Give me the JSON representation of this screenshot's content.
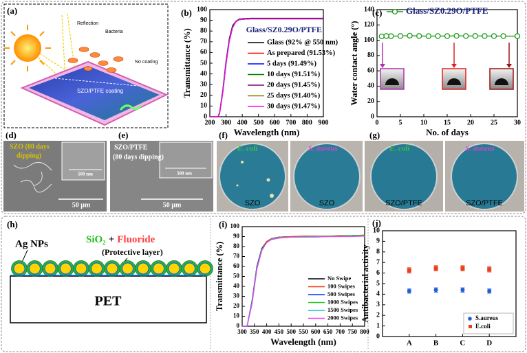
{
  "chart_data": [
    {
      "type": "line",
      "label": "(b)",
      "title": "Glass/SZ0.29O/PTFE",
      "xlabel": "Wavelength (nm)",
      "ylabel": "Transmittance (%)",
      "x": [
        200,
        250,
        260,
        280,
        300,
        320,
        340,
        360,
        380,
        400,
        450,
        550,
        700,
        900
      ],
      "series": [
        {
          "name": "Glass (92% @ 550 nm)",
          "color": "#000000",
          "values": [
            0,
            0,
            4,
            25,
            52,
            73,
            85,
            89,
            91,
            91.5,
            92,
            92,
            92,
            92
          ]
        },
        {
          "name": "As prepared (91.53%)",
          "color": "#ff0000",
          "values": [
            0,
            0,
            3,
            24,
            50,
            72,
            84,
            89,
            90.5,
            91,
            91.5,
            91.5,
            91.5,
            91.5
          ]
        },
        {
          "name": "5 days  (91.49%)",
          "color": "#0000ff",
          "values": [
            0,
            0,
            3,
            24,
            51,
            72,
            84,
            89,
            90.5,
            91,
            91.5,
            91.5,
            91.5,
            91.5
          ]
        },
        {
          "name": "10 days (91.51%)",
          "color": "#008000",
          "values": [
            0,
            0,
            3,
            23,
            50,
            71,
            84,
            89,
            90.5,
            91,
            91.5,
            91.5,
            91.5,
            91.5
          ]
        },
        {
          "name": "20 days (91.45%)",
          "color": "#800080",
          "values": [
            0,
            0,
            3,
            23,
            50,
            71,
            83,
            88.5,
            90.5,
            91,
            91.4,
            91.4,
            91.4,
            91.4
          ]
        },
        {
          "name": "25 days (91.40%)",
          "color": "#808000",
          "values": [
            0,
            0,
            3,
            23,
            49,
            71,
            83,
            88.5,
            90.5,
            91,
            91.4,
            91.4,
            91.4,
            91.4
          ]
        },
        {
          "name": "30 days (91.47%)",
          "color": "#ff00ff",
          "values": [
            0,
            0,
            3,
            22,
            49,
            70,
            83,
            88.5,
            90.5,
            91,
            91.4,
            91.4,
            91.4,
            91.4
          ]
        }
      ],
      "xlim": [
        200,
        900
      ],
      "xticks": [
        200,
        300,
        400,
        500,
        600,
        700,
        800,
        900
      ],
      "ylim": [
        0,
        100
      ],
      "yticks": [
        0,
        10,
        20,
        30,
        40,
        50,
        60,
        70,
        80,
        90,
        100
      ],
      "grid": false,
      "legend": "center right"
    },
    {
      "type": "line",
      "label": "(c)",
      "xlabel": "No. of days",
      "ylabel": "Water contact angle (°)",
      "markers": true,
      "x": [
        1,
        2,
        3,
        5,
        7,
        9,
        11,
        13,
        15,
        17,
        19,
        21,
        23,
        25,
        27,
        30
      ],
      "series": [
        {
          "name": "Glass/SZ0.29O/PTFE",
          "color": "#1a9a1a",
          "values": [
            105,
            105.5,
            105.3,
            105.5,
            106,
            105.5,
            105.3,
            105.5,
            105.4,
            105.8,
            105.5,
            105.6,
            105.5,
            105.4,
            105.4,
            105.3
          ]
        }
      ],
      "xlim": [
        0,
        30
      ],
      "xticks": [
        0,
        5,
        10,
        15,
        20,
        25,
        30
      ],
      "ylim": [
        0,
        140
      ],
      "yticks": [
        0,
        20,
        40,
        60,
        80,
        100,
        120,
        140
      ],
      "grid": false,
      "legend": "upper left"
    },
    {
      "type": "line",
      "label": "(i)",
      "xlabel": "Wavelength (nm)",
      "ylabel": "Transmittance (%)",
      "x": [
        300,
        320,
        340,
        360,
        380,
        400,
        420,
        450,
        500,
        550,
        600,
        650,
        700,
        750,
        800
      ],
      "series": [
        {
          "name": "No Swipe",
          "color": "#000000",
          "values": [
            0,
            0,
            25,
            60,
            78,
            85,
            88,
            89.5,
            90,
            90,
            90,
            90.5,
            90.5,
            91,
            91
          ]
        },
        {
          "name": "100 Swipes",
          "color": "#ff2a00",
          "values": [
            0,
            0,
            24,
            59,
            77,
            85,
            88,
            89.5,
            90,
            90.5,
            90.5,
            90.5,
            91,
            91,
            91.5
          ]
        },
        {
          "name": "500 Swipes",
          "color": "#0033ff",
          "values": [
            0,
            0,
            24,
            59,
            77,
            84,
            87.5,
            89,
            89.5,
            90,
            90,
            90,
            90.5,
            90.5,
            90.5
          ]
        },
        {
          "name": "1000 Swipes",
          "color": "#22cc22",
          "values": [
            0,
            0,
            23,
            58,
            77,
            84,
            87.5,
            89,
            89.5,
            90,
            90,
            90.5,
            90.5,
            91,
            91
          ]
        },
        {
          "name": "1500 Swipes",
          "color": "#00cccc",
          "values": [
            0,
            0,
            23,
            58,
            76,
            84,
            87.5,
            89,
            89.5,
            89.5,
            90,
            90,
            90,
            90.5,
            90.5
          ]
        },
        {
          "name": "2000 Swipes",
          "color": "#ee44ee",
          "values": [
            0,
            0,
            22,
            57,
            76,
            84,
            87,
            88.5,
            89.5,
            89.5,
            89.5,
            90,
            90,
            90,
            90.5
          ]
        }
      ],
      "xlim": [
        300,
        800
      ],
      "xticks": [
        300,
        350,
        400,
        450,
        500,
        550,
        600,
        650,
        700,
        750,
        800
      ],
      "ylim": [
        0,
        100
      ],
      "yticks": [
        0,
        10,
        20,
        30,
        40,
        50,
        60,
        70,
        80,
        90,
        100
      ],
      "grid": false,
      "legend": "lower right"
    },
    {
      "type": "scatter",
      "label": "(j)",
      "ylabel": "Antibacterial activity",
      "categories": [
        "A",
        "B",
        "C",
        "D"
      ],
      "series": [
        {
          "name": "S.aureus",
          "color": "#1f5fd6",
          "marker": "circle",
          "values": [
            4.3,
            4.4,
            4.4,
            4.3
          ],
          "errors": [
            0.2,
            0.2,
            0.2,
            0.2
          ]
        },
        {
          "name": "E.coli",
          "color": "#e8401c",
          "marker": "square",
          "values": [
            6.25,
            6.45,
            6.45,
            6.35
          ],
          "errors": [
            0.25,
            0.25,
            0.25,
            0.25
          ]
        }
      ],
      "ylim": [
        0,
        10
      ],
      "yticks": [
        0,
        1,
        2,
        3,
        4,
        5,
        6,
        7,
        8,
        9,
        10
      ],
      "grid": false,
      "legend": "lower right"
    }
  ],
  "figure": {
    "a": {
      "label": "(a)",
      "reflection": "Reflection",
      "bacteria": "Bacteria",
      "no_coating": "No coating",
      "coating": "SZO/PTFE coating"
    },
    "d": {
      "label": "(d)",
      "caption_lines": [
        "SZO (80 days",
        "dipping)"
      ],
      "inset_scale": "500 nm",
      "scale": "50 µm"
    },
    "e": {
      "label": "(e)",
      "caption_lines": [
        "SZO/PTFE",
        "(80 days  dipping)"
      ],
      "inset_scale": "500 nm",
      "scale": "50 µm"
    },
    "f": {
      "label": "(f)",
      "top": [
        "E. coli",
        "S. aureus"
      ],
      "bottom": [
        "SZO",
        "SZO"
      ]
    },
    "g": {
      "label": "(g)",
      "top": [
        "E. coli",
        "S. aureus"
      ],
      "bottom": [
        "SZO/PTFE",
        "SZO/PTFE"
      ]
    },
    "h": {
      "label": "(h)",
      "particles": "Ag NPs",
      "layer_a": "SiO₂",
      "plus": "+",
      "layer_b": "Fluoride",
      "layer_note": "(Protective layer)",
      "substrate": "PET"
    }
  }
}
